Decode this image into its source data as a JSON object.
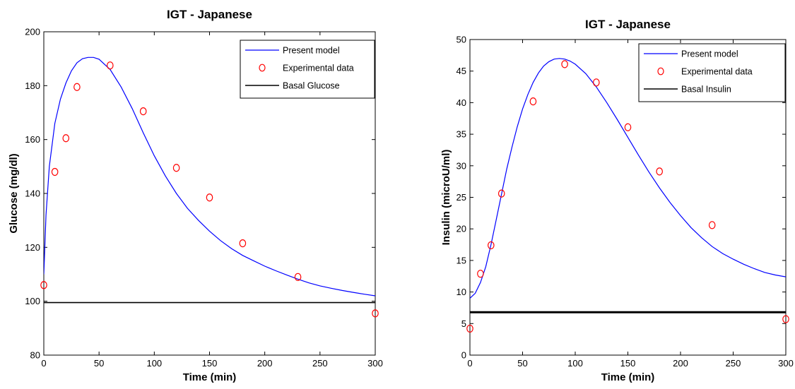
{
  "colors": {
    "model": "#0000ff",
    "experimental": "#ff0000",
    "basal": "#000000"
  },
  "chart_data": [
    {
      "type": "line",
      "title": "IGT - Japanese",
      "xlabel": "Time (min)",
      "ylabel": "Glucose (mg/dl)",
      "xlim": [
        0,
        300
      ],
      "ylim": [
        80,
        200
      ],
      "xticks": [
        0,
        50,
        100,
        150,
        200,
        250,
        300
      ],
      "yticks": [
        80,
        100,
        120,
        140,
        160,
        180,
        200
      ],
      "legend_position": "top-right",
      "grid": false,
      "series": [
        {
          "name": "Present model",
          "kind": "line",
          "x": [
            0,
            2,
            5,
            10,
            15,
            20,
            25,
            30,
            35,
            40,
            45,
            50,
            60,
            70,
            80,
            90,
            100,
            110,
            120,
            130,
            140,
            150,
            160,
            170,
            180,
            190,
            200,
            210,
            220,
            230,
            240,
            250,
            260,
            270,
            280,
            290,
            300
          ],
          "values": [
            110,
            132,
            150,
            166,
            175,
            181,
            185.5,
            188.5,
            190,
            190.5,
            190.5,
            189.8,
            186,
            179.5,
            171.5,
            162.5,
            154,
            146.5,
            140,
            134.5,
            130,
            126,
            122.5,
            119.5,
            117,
            115,
            113,
            111.3,
            109.7,
            108.2,
            106.8,
            105.7,
            104.8,
            104,
            103.3,
            102.6,
            102
          ]
        },
        {
          "name": "Experimental data",
          "kind": "marker",
          "x": [
            0,
            10,
            20,
            30,
            60,
            90,
            120,
            150,
            180,
            230,
            300
          ],
          "values": [
            106,
            148,
            160.5,
            179.5,
            187.5,
            170.5,
            149.5,
            138.5,
            121.5,
            109,
            95.5
          ]
        },
        {
          "name": "Basal Glucose",
          "kind": "line",
          "x": [
            0,
            300
          ],
          "values": [
            99.5,
            99.5
          ]
        }
      ]
    },
    {
      "type": "line",
      "title": "IGT - Japanese",
      "xlabel": "Time (min)",
      "ylabel": "Insulin (microU/ml)",
      "xlim": [
        0,
        300
      ],
      "ylim": [
        0,
        50
      ],
      "xticks": [
        0,
        50,
        100,
        150,
        200,
        250,
        300
      ],
      "yticks": [
        0,
        5,
        10,
        15,
        20,
        25,
        30,
        35,
        40,
        45,
        50
      ],
      "legend_position": "top-right",
      "grid": false,
      "series": [
        {
          "name": "Present model",
          "kind": "line",
          "x": [
            0,
            5,
            10,
            15,
            20,
            25,
            30,
            35,
            40,
            45,
            50,
            55,
            60,
            65,
            70,
            75,
            80,
            85,
            90,
            95,
            100,
            110,
            120,
            130,
            140,
            150,
            160,
            170,
            180,
            190,
            200,
            210,
            220,
            230,
            240,
            250,
            260,
            270,
            280,
            290,
            300
          ],
          "values": [
            9,
            9.8,
            11.5,
            14,
            17.5,
            21.5,
            25.5,
            29.5,
            33,
            36.2,
            39,
            41.3,
            43.2,
            44.7,
            45.8,
            46.5,
            46.9,
            47,
            46.9,
            46.6,
            46.1,
            44.6,
            42.5,
            40,
            37.3,
            34.5,
            31.7,
            29,
            26.5,
            24.2,
            22.1,
            20.2,
            18.6,
            17.2,
            16.1,
            15.2,
            14.4,
            13.7,
            13.1,
            12.7,
            12.4
          ]
        },
        {
          "name": "Experimental data",
          "kind": "marker",
          "x": [
            0,
            10,
            20,
            30,
            60,
            90,
            120,
            150,
            180,
            230,
            300
          ],
          "values": [
            4.2,
            12.9,
            17.4,
            25.6,
            40.2,
            46.1,
            43.2,
            36.1,
            29.1,
            20.6,
            5.7
          ]
        },
        {
          "name": "Basal Insulin",
          "kind": "line",
          "x": [
            0,
            300
          ],
          "values": [
            6.8,
            6.8
          ]
        }
      ]
    }
  ]
}
